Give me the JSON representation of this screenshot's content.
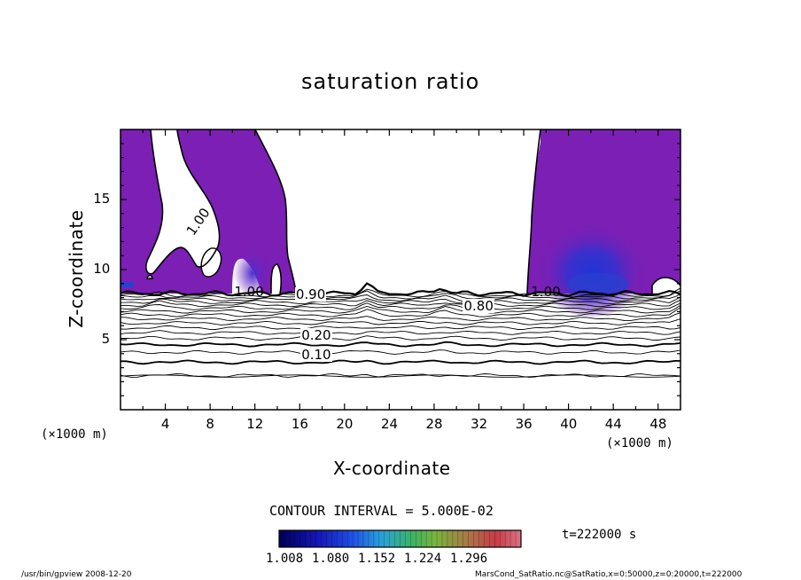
{
  "chart_data": {
    "type": "contour",
    "title": "saturation ratio",
    "xlabel": "X-coordinate",
    "ylabel": "Z-coordinate",
    "x_unit": "(×1000 m)",
    "y_unit": "(×1000 m)",
    "xlim": [
      0,
      50
    ],
    "ylim": [
      0,
      20
    ],
    "x_ticks": [
      4,
      8,
      12,
      16,
      20,
      24,
      28,
      32,
      36,
      40,
      44,
      48
    ],
    "y_ticks": [
      5,
      10,
      15
    ],
    "contour_interval_label": "CONTOUR INTERVAL = 5.000E-02",
    "contour_labels": [
      {
        "text": "1.00",
        "x": 7,
        "z": 13.3
      },
      {
        "text": "1.00",
        "x": 11.5,
        "z": 8.3
      },
      {
        "text": "1.00",
        "x": 38,
        "z": 8.3
      },
      {
        "text": "0.90",
        "x": 17,
        "z": 8.1
      },
      {
        "text": "0.80",
        "x": 32,
        "z": 7.3
      },
      {
        "text": "0.20",
        "x": 17.5,
        "z": 5.2
      },
      {
        "text": "0.10",
        "x": 17.5,
        "z": 3.8
      }
    ],
    "fill_colors": {
      "purple": "#7b1fb5",
      "blue": "#2a3fd0",
      "mid_blue": "#4b2fc4"
    },
    "colorbar": {
      "labels": [
        "1.008",
        "1.080",
        "1.152",
        "1.224",
        "1.296"
      ],
      "min": 1.008,
      "max": 1.296
    },
    "time_label": "t=222000 s"
  },
  "footer": {
    "left": "/usr/bin/gpview  2008-12-20",
    "right": "MarsCond_SatRatio.nc@SatRatio,x=0:50000,z=0:20000,t=222000"
  }
}
